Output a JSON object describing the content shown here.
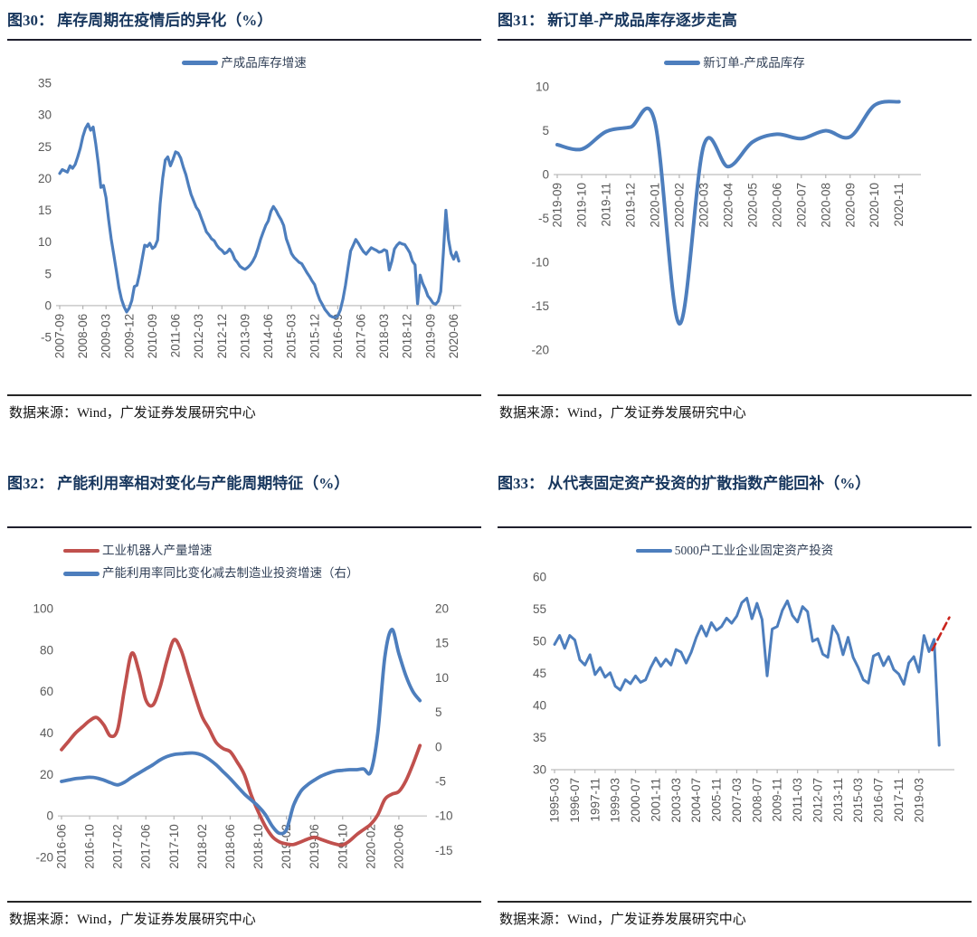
{
  "colors": {
    "line_blue": "#4d7ebd",
    "line_red": "#c0504d",
    "dash_red": "#c9241d",
    "title_navy": "#17365d",
    "axis_gray": "#595959"
  },
  "chart_data": [
    {
      "type": "line",
      "title": "图30： 库存周期在疫情后的异化（%）",
      "legend": [
        {
          "name": "产成品库存增速",
          "color": "#4d7ebd"
        }
      ],
      "legend_position": "top-center",
      "grid": false,
      "x_mode": "month",
      "x_start": "2007-09",
      "x_ticks": [
        "2007-09",
        "2008-06",
        "2009-03",
        "2009-12",
        "2010-09",
        "2011-06",
        "2012-03",
        "2012-12",
        "2013-09",
        "2014-06",
        "2015-03",
        "2015-12",
        "2016-09",
        "2017-06",
        "2018-03",
        "2018-12",
        "2019-09",
        "2020-06"
      ],
      "xlim": [
        0,
        156
      ],
      "ylim": [
        -5,
        35
      ],
      "y_ticks": [
        35,
        30,
        25,
        20,
        15,
        10,
        5,
        0,
        -5
      ],
      "axis_line_value": 0,
      "series": [
        {
          "name": "产成品库存增速",
          "color": "#4d7ebd",
          "axis": "left",
          "width": 3.2,
          "smooth": false,
          "values": [
            20.8,
            21.4,
            21.2,
            21.0,
            22.0,
            21.6,
            22.2,
            23.4,
            24.8,
            26.6,
            27.9,
            28.6,
            27.6,
            28.1,
            25.5,
            22.3,
            18.6,
            18.9,
            17.0,
            13.5,
            10.5,
            8.0,
            5.5,
            2.8,
            1.0,
            -0.2,
            -1.0,
            -0.4,
            0.8,
            3.0,
            3.2,
            5.0,
            7.3,
            9.5,
            9.3,
            9.8,
            9.0,
            9.3,
            10.3,
            16.0,
            20.0,
            22.9,
            23.4,
            22.0,
            23.0,
            24.2,
            24.0,
            23.2,
            21.8,
            20.6,
            19.0,
            17.5,
            16.5,
            15.5,
            14.9,
            13.8,
            12.7,
            11.6,
            11.1,
            10.5,
            10.2,
            9.5,
            9.0,
            8.7,
            8.2,
            8.4,
            8.9,
            8.3,
            7.3,
            6.8,
            6.2,
            5.9,
            5.7,
            6.0,
            6.4,
            7.0,
            7.8,
            9.0,
            10.4,
            11.5,
            12.6,
            13.3,
            14.8,
            15.6,
            15.0,
            14.2,
            13.5,
            12.6,
            10.5,
            9.4,
            8.2,
            7.6,
            7.2,
            6.8,
            6.6,
            5.9,
            5.2,
            4.6,
            3.9,
            3.3,
            2.0,
            0.9,
            0.2,
            -0.6,
            -1.1,
            -1.6,
            -1.8,
            -1.9,
            -1.6,
            -0.7,
            1.0,
            3.2,
            6.0,
            8.6,
            9.5,
            10.4,
            9.8,
            9.1,
            8.5,
            8.1,
            8.6,
            9.1,
            8.9,
            8.7,
            8.4,
            8.5,
            8.8,
            8.6,
            5.6,
            7.0,
            8.9,
            9.5,
            9.9,
            9.7,
            9.6,
            9.0,
            8.3,
            7.0,
            6.4,
            0.3,
            4.8,
            3.5,
            2.6,
            1.5,
            1.0,
            0.4,
            0.2,
            0.7,
            2.2,
            8.3,
            15.0,
            10.4,
            8.2,
            7.3,
            8.4,
            7.0
          ]
        }
      ],
      "source": "数据来源：Wind，广发证券发展研究中心"
    },
    {
      "type": "line",
      "title": "图31： 新订单-产成品库存逐步走高",
      "legend": [
        {
          "name": "新订单-产成品库存",
          "color": "#4d7ebd"
        }
      ],
      "legend_position": "top-center",
      "grid": false,
      "x_mode": "month",
      "x_start": "2019-09",
      "x_ticks": [
        "2019-09",
        "2019-10",
        "2019-11",
        "2019-12",
        "2020-01",
        "2020-02",
        "2020-03",
        "2020-04",
        "2020-05",
        "2020-06",
        "2020-07",
        "2020-08",
        "2020-09",
        "2020-10",
        "2020-11"
      ],
      "xlim": [
        0,
        14.9
      ],
      "ylim": [
        -20,
        10
      ],
      "y_ticks": [
        10,
        5,
        0,
        -5,
        -10,
        -15,
        -20
      ],
      "axis_line_value": 0,
      "series": [
        {
          "name": "新订单-产成品库存",
          "color": "#4d7ebd",
          "axis": "left",
          "width": 4,
          "smooth": true,
          "values": [
            3.4,
            2.9,
            4.9,
            5.4,
            6.0,
            -17.0,
            3.3,
            0.9,
            3.7,
            4.6,
            4.1,
            5.0,
            4.3,
            7.9,
            8.3
          ]
        }
      ],
      "source": "数据来源：Wind，广发证券发展研究中心"
    },
    {
      "type": "line",
      "title": "图32： 产能利用率相对变化与产能周期特征（%）",
      "legend": [
        {
          "name": "工业机器人产量增速",
          "color": "#c0504d"
        },
        {
          "name": "产能利用率同比变化减去制造业投资增速（右）",
          "color": "#4d7ebd"
        }
      ],
      "legend_position": "top-left",
      "grid": false,
      "x_mode": "month",
      "x_start": "2016-06",
      "x_ticks": [
        "2016-06",
        "2016-10",
        "2017-02",
        "2017-06",
        "2017-10",
        "2018-02",
        "2018-06",
        "2018-10",
        "2019-02",
        "2019-06",
        "2019-10",
        "2020-02",
        "2020-06"
      ],
      "xlim": [
        0,
        52
      ],
      "ylim": [
        -20,
        100
      ],
      "y_ticks": [
        100,
        80,
        60,
        40,
        20,
        0,
        -20
      ],
      "ylim_right": [
        -16,
        20
      ],
      "y_ticks_right": [
        20,
        15,
        10,
        5,
        0,
        -5,
        -10,
        -15
      ],
      "axis_line_value": 0,
      "series": [
        {
          "name": "工业机器人产量增速",
          "color": "#c0504d",
          "axis": "left",
          "width": 3.8,
          "smooth": true,
          "values": [
            32,
            36,
            40,
            43,
            46,
            47.5,
            44,
            38.5,
            42,
            62,
            78.5,
            70,
            56,
            53.5,
            62,
            75,
            85,
            80,
            69,
            58,
            48,
            42,
            35.5,
            32.5,
            31,
            26,
            20,
            10,
            2,
            -5,
            -10,
            -12.5,
            -13.5,
            -13.8,
            -12.6,
            -11.2,
            -10.3,
            -11.4,
            -12.6,
            -13.6,
            -14.0,
            -12.0,
            -9.0,
            -6.5,
            -4.0,
            0.5,
            8.0,
            10.5,
            11.8,
            17.0,
            25.0,
            34.0
          ]
        },
        {
          "name": "产能利用率同比变化减去制造业投资增速（右）",
          "color": "#4d7ebd",
          "axis": "right",
          "width": 3.8,
          "smooth": true,
          "values": [
            -5.0,
            -4.8,
            -4.6,
            -4.5,
            -4.4,
            -4.5,
            -4.8,
            -5.2,
            -5.5,
            -5.1,
            -4.4,
            -3.8,
            -3.2,
            -2.6,
            -1.9,
            -1.4,
            -1.1,
            -1.0,
            -0.9,
            -0.9,
            -1.2,
            -1.8,
            -2.6,
            -3.6,
            -4.6,
            -5.7,
            -6.8,
            -7.7,
            -8.6,
            -9.8,
            -11.5,
            -12.5,
            -12.0,
            -8.5,
            -6.5,
            -5.5,
            -4.8,
            -4.2,
            -3.8,
            -3.5,
            -3.4,
            -3.3,
            -3.3,
            -3.2,
            -3.6,
            2.0,
            13.0,
            17.0,
            13.5,
            10.3,
            8.0,
            6.7
          ]
        }
      ],
      "source": "数据来源：Wind，广发证券发展研究中心"
    },
    {
      "type": "line",
      "title": "图33： 从代表固定资产投资的扩散指数产能回补（%）",
      "legend": [
        {
          "name": "5000户工业企业固定资产投资",
          "color": "#4d7ebd"
        }
      ],
      "legend_position": "top-center",
      "grid": false,
      "x_mode": "index",
      "x_tick_positions": [
        0,
        4,
        8,
        12,
        16,
        20,
        24,
        28,
        32,
        36,
        40,
        44,
        48,
        52,
        56,
        60,
        64,
        68,
        72
      ],
      "x_ticks": [
        "1995-03",
        "1996-07",
        "1997-11",
        "1999-03",
        "2000-07",
        "2001-11",
        "2003-03",
        "2004-07",
        "2005-11",
        "2007-03",
        "2008-07",
        "2009-11",
        "2011-03",
        "2012-07",
        "2013-11",
        "2015-03",
        "2016-07",
        "2017-11",
        "2019-03"
      ],
      "xlim": [
        0,
        79
      ],
      "ylim": [
        30,
        60
      ],
      "y_ticks": [
        60,
        55,
        50,
        45,
        40,
        35,
        30
      ],
      "axis_line_value": 30,
      "series": [
        {
          "name": "5000户工业企业固定资产投资",
          "color": "#4d7ebd",
          "axis": "left",
          "width": 3,
          "smooth": false,
          "values": [
            49.5,
            50.9,
            48.9,
            50.9,
            50.2,
            47.1,
            46.3,
            47.9,
            44.8,
            45.9,
            44.4,
            45.1,
            43.0,
            42.4,
            44.0,
            43.4,
            44.6,
            43.6,
            44.0,
            45.9,
            47.4,
            46.1,
            47.2,
            46.3,
            48.7,
            48.3,
            46.6,
            48.3,
            50.6,
            52.4,
            50.8,
            52.9,
            51.7,
            52.3,
            53.6,
            52.8,
            53.9,
            56.0,
            56.7,
            53.5,
            55.9,
            53.4,
            44.6,
            51.9,
            52.3,
            54.8,
            56.3,
            54.0,
            53.0,
            55.4,
            54.6,
            50.0,
            50.4,
            48.0,
            47.5,
            52.4,
            51.0,
            47.9,
            50.6,
            47.5,
            45.9,
            44.0,
            43.5,
            47.7,
            48.1,
            46.2,
            47.6,
            45.6,
            44.9,
            43.3,
            46.6,
            47.6,
            45.2,
            50.9,
            48.4,
            50.3,
            33.8
          ]
        },
        {
          "name": "预测虚线",
          "color": "#c9241d",
          "axis": "left",
          "width": 2.6,
          "smooth": false,
          "dash": "8 5",
          "points": [
            [
              74.6,
              48.6
            ],
            [
              78,
              53.7
            ]
          ]
        }
      ],
      "source": "数据来源：Wind，广发证券发展研究中心"
    }
  ]
}
